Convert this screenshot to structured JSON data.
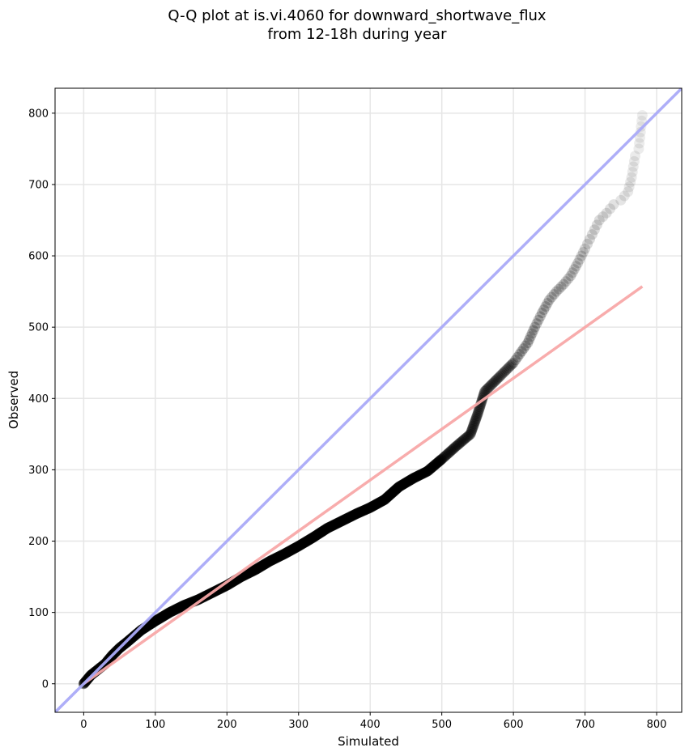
{
  "chart_data": {
    "type": "scatter",
    "title_line1": "Q-Q plot at is.vi.4060 for downward_shortwave_flux",
    "title_line2": "from 12-18h during year",
    "xlabel": "Simulated",
    "ylabel": "Observed",
    "xlim": [
      -40,
      835
    ],
    "ylim": [
      -40,
      835
    ],
    "xticks": [
      0,
      100,
      200,
      300,
      400,
      500,
      600,
      700,
      800
    ],
    "yticks": [
      0,
      100,
      200,
      300,
      400,
      500,
      600,
      700,
      800
    ],
    "grid": true,
    "reference_line": {
      "name": "1:1",
      "color": "#aaaaf8",
      "x": [
        -40,
        835
      ],
      "y": [
        -40,
        835
      ]
    },
    "fit_line": {
      "color": "#f8a8a8",
      "x": [
        0,
        780
      ],
      "y": [
        0,
        557
      ]
    },
    "qq_curve": [
      [
        0,
        0
      ],
      [
        10,
        12
      ],
      [
        20,
        20
      ],
      [
        30,
        28
      ],
      [
        40,
        40
      ],
      [
        50,
        50
      ],
      [
        60,
        58
      ],
      [
        80,
        75
      ],
      [
        100,
        88
      ],
      [
        120,
        100
      ],
      [
        140,
        110
      ],
      [
        160,
        118
      ],
      [
        180,
        128
      ],
      [
        200,
        138
      ],
      [
        220,
        150
      ],
      [
        240,
        160
      ],
      [
        260,
        172
      ],
      [
        280,
        182
      ],
      [
        300,
        193
      ],
      [
        320,
        205
      ],
      [
        340,
        218
      ],
      [
        360,
        228
      ],
      [
        380,
        238
      ],
      [
        400,
        247
      ],
      [
        420,
        258
      ],
      [
        440,
        276
      ],
      [
        460,
        288
      ],
      [
        480,
        298
      ],
      [
        500,
        315
      ],
      [
        520,
        333
      ],
      [
        540,
        350
      ],
      [
        550,
        378
      ],
      [
        560,
        410
      ],
      [
        570,
        420
      ],
      [
        580,
        430
      ],
      [
        600,
        450
      ],
      [
        620,
        478
      ],
      [
        630,
        500
      ],
      [
        640,
        520
      ],
      [
        650,
        538
      ],
      [
        660,
        550
      ],
      [
        670,
        560
      ],
      [
        680,
        572
      ],
      [
        690,
        590
      ],
      [
        700,
        610
      ],
      [
        710,
        630
      ],
      [
        720,
        650
      ],
      [
        730,
        660
      ],
      [
        740,
        672
      ],
      [
        750,
        678
      ],
      [
        760,
        690
      ],
      [
        765,
        710
      ],
      [
        770,
        740
      ],
      [
        775,
        750
      ],
      [
        780,
        797
      ]
    ]
  }
}
